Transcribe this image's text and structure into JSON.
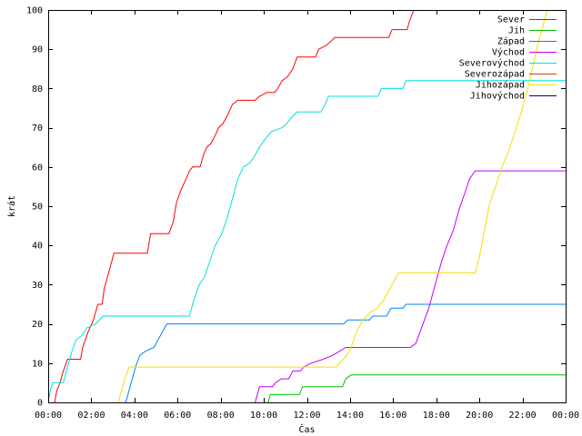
{
  "chart_data": {
    "type": "line",
    "xlabel": "Čas",
    "ylabel": "krát",
    "xlim": [
      0,
      24
    ],
    "ylim": [
      0,
      100
    ],
    "x_ticks": [
      {
        "value": 0,
        "label": "00:00"
      },
      {
        "value": 2,
        "label": "02:00"
      },
      {
        "value": 4,
        "label": "04:00"
      },
      {
        "value": 6,
        "label": "06:00"
      },
      {
        "value": 8,
        "label": "08:00"
      },
      {
        "value": 10,
        "label": "10:00"
      },
      {
        "value": 12,
        "label": "12:00"
      },
      {
        "value": 14,
        "label": "14:00"
      },
      {
        "value": 16,
        "label": "16:00"
      },
      {
        "value": 18,
        "label": "18:00"
      },
      {
        "value": 20,
        "label": "20:00"
      },
      {
        "value": 22,
        "label": "22:00"
      },
      {
        "value": 24,
        "label": "00:00"
      }
    ],
    "y_ticks": [
      {
        "value": 0,
        "label": "0"
      },
      {
        "value": 10,
        "label": "10"
      },
      {
        "value": 20,
        "label": "20"
      },
      {
        "value": 30,
        "label": "30"
      },
      {
        "value": 40,
        "label": "40"
      },
      {
        "value": 50,
        "label": "50"
      },
      {
        "value": 60,
        "label": "60"
      },
      {
        "value": 70,
        "label": "70"
      },
      {
        "value": 80,
        "label": "80"
      },
      {
        "value": 90,
        "label": "90"
      },
      {
        "value": 100,
        "label": "100"
      }
    ],
    "grid": false,
    "legend_position": "top-right",
    "series": [
      {
        "name": "Sever",
        "color": "#ff0000",
        "points": [
          [
            0.3,
            0
          ],
          [
            0.4,
            3
          ],
          [
            0.55,
            5
          ],
          [
            0.7,
            8
          ],
          [
            0.9,
            11
          ],
          [
            1.5,
            11
          ],
          [
            1.6,
            14
          ],
          [
            1.85,
            18
          ],
          [
            2.1,
            21
          ],
          [
            2.3,
            25
          ],
          [
            2.5,
            25
          ],
          [
            2.6,
            29
          ],
          [
            2.75,
            32
          ],
          [
            2.9,
            35
          ],
          [
            3.05,
            38
          ],
          [
            4.6,
            38
          ],
          [
            4.75,
            43
          ],
          [
            5.6,
            43
          ],
          [
            5.8,
            46
          ],
          [
            5.95,
            51
          ],
          [
            6.15,
            54
          ],
          [
            6.4,
            57
          ],
          [
            6.55,
            59
          ],
          [
            6.7,
            60
          ],
          [
            7.05,
            60
          ],
          [
            7.2,
            63
          ],
          [
            7.35,
            65
          ],
          [
            7.55,
            66
          ],
          [
            7.75,
            68
          ],
          [
            7.9,
            70
          ],
          [
            8.1,
            71
          ],
          [
            8.3,
            73
          ],
          [
            8.55,
            76
          ],
          [
            8.8,
            77
          ],
          [
            9.6,
            77
          ],
          [
            9.8,
            78
          ],
          [
            10.15,
            79
          ],
          [
            10.5,
            79
          ],
          [
            10.65,
            80
          ],
          [
            10.85,
            82
          ],
          [
            11.1,
            83
          ],
          [
            11.35,
            85
          ],
          [
            11.55,
            88
          ],
          [
            12.4,
            88
          ],
          [
            12.55,
            90
          ],
          [
            12.9,
            91
          ],
          [
            13.1,
            92
          ],
          [
            13.3,
            93
          ],
          [
            15.8,
            93
          ],
          [
            15.95,
            95
          ],
          [
            16.65,
            95
          ],
          [
            16.75,
            97
          ],
          [
            16.95,
            100
          ]
        ]
      },
      {
        "name": "Jih",
        "color": "#00c000",
        "points": [
          [
            10.2,
            0
          ],
          [
            10.3,
            2
          ],
          [
            11.65,
            2
          ],
          [
            11.8,
            4
          ],
          [
            13.65,
            4
          ],
          [
            13.8,
            6
          ],
          [
            14.05,
            7
          ],
          [
            24,
            7
          ]
        ]
      },
      {
        "name": "Západ",
        "color": "#0080ff",
        "points": [
          [
            3.6,
            0
          ],
          [
            3.75,
            3
          ],
          [
            3.9,
            6
          ],
          [
            4.05,
            9
          ],
          [
            4.25,
            12
          ],
          [
            4.5,
            13
          ],
          [
            4.9,
            14
          ],
          [
            5.1,
            16
          ],
          [
            5.3,
            18
          ],
          [
            5.5,
            20
          ],
          [
            13.7,
            20
          ],
          [
            13.9,
            21
          ],
          [
            14.9,
            21
          ],
          [
            15.05,
            22
          ],
          [
            15.7,
            22
          ],
          [
            15.9,
            24
          ],
          [
            16.45,
            24
          ],
          [
            16.6,
            25
          ],
          [
            24,
            25
          ]
        ]
      },
      {
        "name": "Východ",
        "color": "#c000ff",
        "points": [
          [
            9.6,
            0
          ],
          [
            9.7,
            2
          ],
          [
            9.8,
            4
          ],
          [
            10.4,
            4
          ],
          [
            10.55,
            5
          ],
          [
            10.8,
            6
          ],
          [
            11.15,
            6
          ],
          [
            11.35,
            8
          ],
          [
            11.7,
            8
          ],
          [
            11.85,
            9
          ],
          [
            12.2,
            10
          ],
          [
            12.75,
            11
          ],
          [
            13.2,
            12
          ],
          [
            13.5,
            13
          ],
          [
            13.8,
            14
          ],
          [
            16.8,
            14
          ],
          [
            17.05,
            15
          ],
          [
            17.25,
            18
          ],
          [
            17.45,
            21
          ],
          [
            17.65,
            24
          ],
          [
            17.85,
            28
          ],
          [
            18.05,
            32
          ],
          [
            18.25,
            36
          ],
          [
            18.5,
            40
          ],
          [
            18.8,
            44
          ],
          [
            19.05,
            49
          ],
          [
            19.3,
            53
          ],
          [
            19.55,
            57
          ],
          [
            19.8,
            59
          ],
          [
            24,
            59
          ]
        ]
      },
      {
        "name": "Severovýchod",
        "color": "#00e0e0",
        "points": [
          [
            0,
            0
          ],
          [
            0.1,
            3
          ],
          [
            0.2,
            5
          ],
          [
            0.7,
            5
          ],
          [
            0.9,
            9
          ],
          [
            1.1,
            13
          ],
          [
            1.3,
            16
          ],
          [
            1.55,
            17
          ],
          [
            1.8,
            19
          ],
          [
            2.2,
            20
          ],
          [
            2.55,
            22
          ],
          [
            6.55,
            22
          ],
          [
            6.75,
            26
          ],
          [
            7.0,
            30
          ],
          [
            7.25,
            32
          ],
          [
            7.5,
            36
          ],
          [
            7.75,
            40
          ],
          [
            8.05,
            43
          ],
          [
            8.3,
            47
          ],
          [
            8.55,
            52
          ],
          [
            8.8,
            57
          ],
          [
            9.05,
            60
          ],
          [
            9.35,
            61
          ],
          [
            9.6,
            63
          ],
          [
            9.8,
            65
          ],
          [
            10.05,
            67
          ],
          [
            10.35,
            69
          ],
          [
            10.85,
            70
          ],
          [
            11.05,
            71
          ],
          [
            11.35,
            73
          ],
          [
            11.55,
            74
          ],
          [
            12.65,
            74
          ],
          [
            12.85,
            76
          ],
          [
            13.0,
            78
          ],
          [
            15.3,
            78
          ],
          [
            15.45,
            80
          ],
          [
            16.45,
            80
          ],
          [
            16.6,
            82
          ],
          [
            24,
            82
          ]
        ]
      },
      {
        "name": "Severozápad",
        "color": "#c05000",
        "points": []
      },
      {
        "name": "Jihozápad",
        "color": "#f0e000",
        "points": [
          [
            3.25,
            0
          ],
          [
            3.4,
            3
          ],
          [
            3.55,
            6
          ],
          [
            3.75,
            9
          ],
          [
            13.35,
            9
          ],
          [
            13.5,
            10
          ],
          [
            13.85,
            12
          ],
          [
            14.05,
            14
          ],
          [
            14.3,
            18
          ],
          [
            14.6,
            21
          ],
          [
            14.95,
            23
          ],
          [
            15.25,
            24
          ],
          [
            15.55,
            26
          ],
          [
            15.85,
            29
          ],
          [
            16.05,
            31
          ],
          [
            16.25,
            33
          ],
          [
            19.8,
            33
          ],
          [
            20.0,
            37
          ],
          [
            20.2,
            43
          ],
          [
            20.45,
            50
          ],
          [
            20.75,
            55
          ],
          [
            21.05,
            60
          ],
          [
            21.35,
            64
          ],
          [
            21.65,
            69
          ],
          [
            21.95,
            74
          ],
          [
            22.2,
            79
          ],
          [
            22.45,
            85
          ],
          [
            22.7,
            91
          ],
          [
            22.95,
            96
          ],
          [
            23.15,
            100
          ]
        ]
      },
      {
        "name": "Jihovýchod",
        "color": "#0000a0",
        "points": []
      }
    ]
  }
}
